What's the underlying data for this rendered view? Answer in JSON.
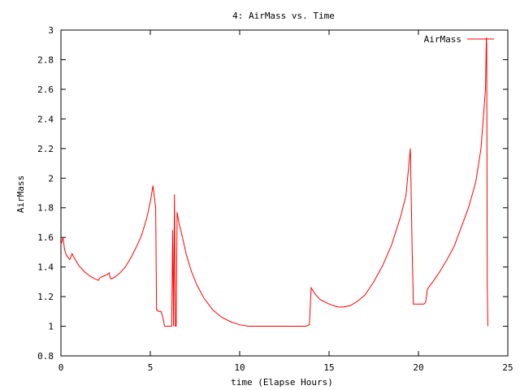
{
  "chart_data": {
    "type": "line",
    "title": "4: AirMass vs. Time",
    "xlabel": "time (Elapse Hours)",
    "ylabel": "AirMass",
    "xlim": [
      0,
      25
    ],
    "ylim": [
      0.8,
      3
    ],
    "x_ticks": [
      0,
      5,
      10,
      15,
      20,
      25
    ],
    "x_tick_labels": [
      "0",
      "5",
      "10",
      "15",
      "20",
      "25"
    ],
    "y_ticks": [
      0.8,
      1,
      1.2,
      1.4,
      1.6,
      1.8,
      2,
      2.2,
      2.4,
      2.6,
      2.8,
      3
    ],
    "y_tick_labels": [
      "0.8",
      "1",
      "1.2",
      "1.4",
      "1.6",
      "1.8",
      "2",
      "2.2",
      "2.4",
      "2.6",
      "2.8",
      "3"
    ],
    "grid": false,
    "legend_position": "top-right",
    "series": [
      {
        "name": "AirMass",
        "color": "#ff0000",
        "x": [
          0,
          0.12,
          0.2,
          0.3,
          0.5,
          0.62,
          0.8,
          1.0,
          1.3,
          1.6,
          1.9,
          2.1,
          2.2,
          2.4,
          2.6,
          2.7,
          2.75,
          2.8,
          3.0,
          3.3,
          3.6,
          3.9,
          4.2,
          4.5,
          4.8,
          5.0,
          5.15,
          5.3,
          5.35,
          5.4,
          5.45,
          5.6,
          5.7,
          5.8,
          6.0,
          6.2,
          6.25,
          6.3,
          6.35,
          6.4,
          6.45,
          6.5,
          6.6,
          6.8,
          7.0,
          7.3,
          7.6,
          8.0,
          8.5,
          9.0,
          9.5,
          10.0,
          10.5,
          11.0,
          12.0,
          13.0,
          13.7,
          13.9,
          14.0,
          14.2,
          14.5,
          15.0,
          15.5,
          15.8,
          16.2,
          16.6,
          17.0,
          17.5,
          18.0,
          18.5,
          19.0,
          19.3,
          19.55,
          19.65,
          19.72,
          19.8,
          20.0,
          20.3,
          20.4,
          20.5,
          20.8,
          21.2,
          21.6,
          22.0,
          22.4,
          22.8,
          23.2,
          23.5,
          23.75,
          23.8,
          23.82,
          23.85,
          23.88
        ],
        "y": [
          1.55,
          1.6,
          1.52,
          1.48,
          1.45,
          1.49,
          1.45,
          1.41,
          1.37,
          1.34,
          1.32,
          1.31,
          1.33,
          1.34,
          1.35,
          1.36,
          1.33,
          1.32,
          1.33,
          1.36,
          1.4,
          1.46,
          1.53,
          1.61,
          1.73,
          1.84,
          1.95,
          1.8,
          1.11,
          1.11,
          1.1,
          1.1,
          1.06,
          1.0,
          1.0,
          1.0,
          1.65,
          1.0,
          1.89,
          1.0,
          1.0,
          1.77,
          1.7,
          1.6,
          1.49,
          1.37,
          1.28,
          1.19,
          1.11,
          1.06,
          1.03,
          1.01,
          1.0,
          1.0,
          1.0,
          1.0,
          1.0,
          1.01,
          1.26,
          1.22,
          1.18,
          1.15,
          1.13,
          1.13,
          1.14,
          1.17,
          1.21,
          1.3,
          1.41,
          1.55,
          1.74,
          1.88,
          2.2,
          1.5,
          1.15,
          1.15,
          1.15,
          1.15,
          1.16,
          1.25,
          1.3,
          1.37,
          1.45,
          1.54,
          1.67,
          1.8,
          1.97,
          2.2,
          2.6,
          2.95,
          2.9,
          1.3,
          1.0
        ]
      }
    ]
  }
}
